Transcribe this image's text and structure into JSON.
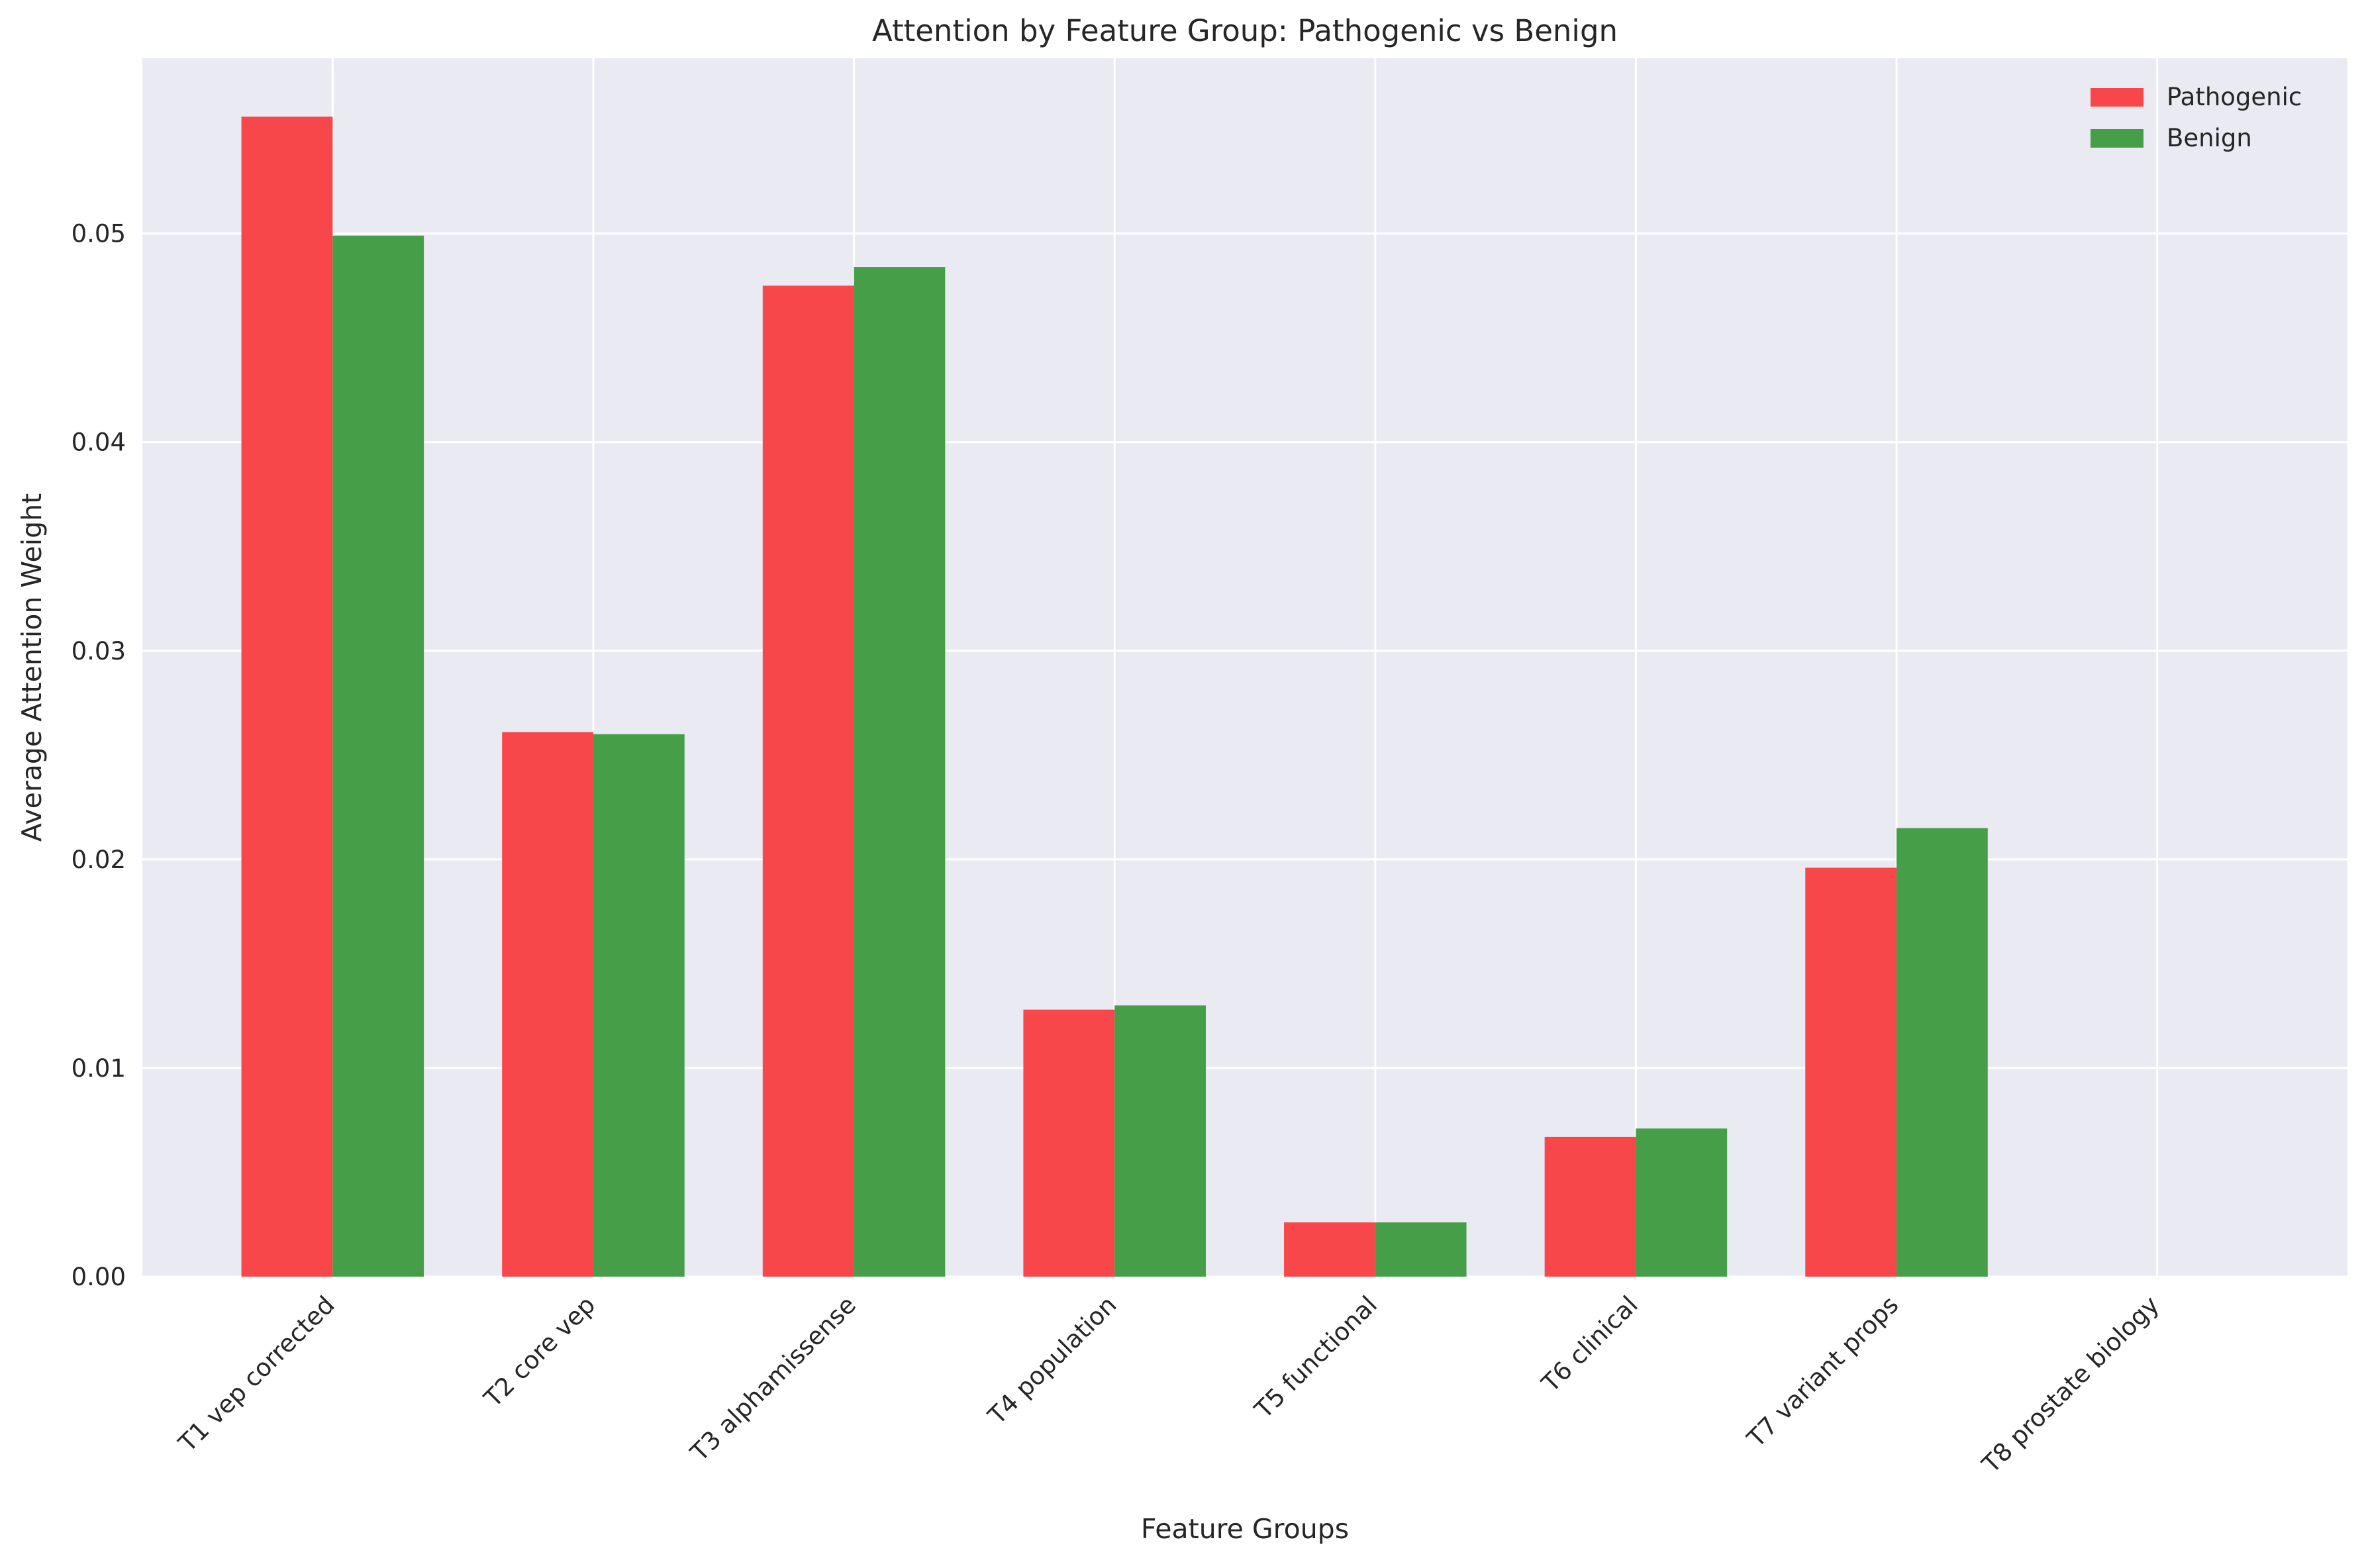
{
  "chart_data": {
    "type": "bar",
    "title": "Attention by Feature Group: Pathogenic vs Benign",
    "xlabel": "Feature Groups",
    "ylabel": "Average Attention Weight",
    "categories": [
      "T1 vep corrected",
      "T2 core vep",
      "T3 alphamissense",
      "T4 population",
      "T5 functional",
      "T6 clinical",
      "T7 variant props",
      "T8 prostate biology"
    ],
    "series": [
      {
        "name": "Pathogenic",
        "color": "#f7474a",
        "values": [
          0.0556,
          0.0261,
          0.0475,
          0.0128,
          0.0026,
          0.0067,
          0.0196,
          0.0
        ]
      },
      {
        "name": "Benign",
        "color": "#469e49",
        "values": [
          0.0499,
          0.026,
          0.0484,
          0.013,
          0.0026,
          0.0071,
          0.0215,
          0.0
        ]
      }
    ],
    "ylim": [
      0,
      0.0584
    ],
    "yticks": [
      "0.00",
      "0.01",
      "0.02",
      "0.03",
      "0.04",
      "0.05"
    ],
    "grid": true,
    "legend_position": "top-right",
    "background_color": "#eaeaf2",
    "grid_color": "#ffffff"
  }
}
